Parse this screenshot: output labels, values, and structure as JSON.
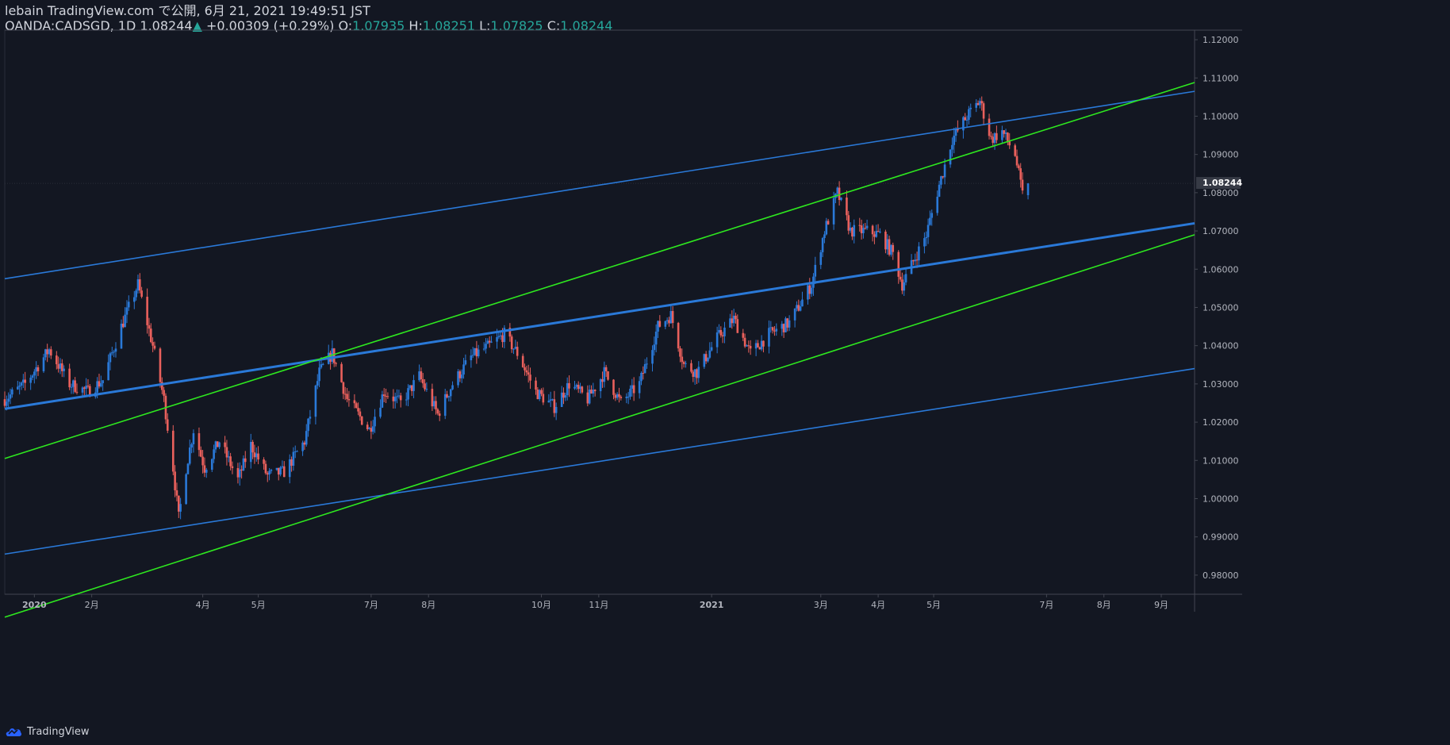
{
  "header": {
    "publish_line": "lebain TradingView.com で公開, 6月 21, 2021 19:49:51 JST",
    "symbol_line": "OANDA:CADSGD, 1D",
    "last": "1.08244",
    "change": "+0.00309 (+0.29%)",
    "open_label": "O:",
    "open": "1.07935",
    "high_label": "H:",
    "high": "1.08251",
    "low_label": "L:",
    "low": "1.07825",
    "close_label": "C:",
    "close": "1.08244"
  },
  "footer": {
    "brand": "TradingView"
  },
  "colors": {
    "background": "#131722",
    "up": "#2a79d8",
    "down": "#e9605c",
    "channel_blue": "#2a79d8",
    "channel_green": "#2ee81f",
    "axis_text": "#b2b5be",
    "price_label_bg": "#363a45"
  },
  "chart_data": {
    "type": "candlestick",
    "symbol": "OANDA:CADSGD",
    "interval": "1D",
    "ylim": [
      0.975,
      1.1225
    ],
    "y_ticks": [
      "0.98000",
      "0.99000",
      "1.00000",
      "1.01000",
      "1.02000",
      "1.03000",
      "1.04000",
      "1.05000",
      "1.06000",
      "1.07000",
      "1.08000",
      "1.09000",
      "1.10000",
      "1.11000",
      "1.12000"
    ],
    "x_tick_labels": [
      "2020",
      "2月",
      "4月",
      "5月",
      "7月",
      "8月",
      "10月",
      "11月",
      "2021",
      "3月",
      "4月",
      "5月",
      "7月",
      "8月",
      "9月"
    ],
    "current_price_label": "1.08244",
    "ohlc_last": {
      "open": 1.07935,
      "high": 1.08251,
      "low": 1.07825,
      "close": 1.08244
    },
    "path": [
      [
        "2019-12-16",
        1.026
      ],
      [
        "2019-12-27",
        1.03
      ],
      [
        "2020-01-09",
        1.039
      ],
      [
        "2020-01-20",
        1.03
      ],
      [
        "2020-01-30",
        1.028
      ],
      [
        "2020-02-07",
        1.031
      ],
      [
        "2020-02-17",
        1.045
      ],
      [
        "2020-02-26",
        1.056
      ],
      [
        "2020-03-05",
        1.04
      ],
      [
        "2020-03-11",
        1.026
      ],
      [
        "2020-03-16",
        1.008
      ],
      [
        "2020-03-19",
        0.995
      ],
      [
        "2020-03-23",
        1.008
      ],
      [
        "2020-03-27",
        1.018
      ],
      [
        "2020-04-02",
        1.008
      ],
      [
        "2020-04-10",
        1.015
      ],
      [
        "2020-04-20",
        1.005
      ],
      [
        "2020-04-27",
        1.014
      ],
      [
        "2020-05-06",
        1.006
      ],
      [
        "2020-05-15",
        1.007
      ],
      [
        "2020-05-26",
        1.015
      ],
      [
        "2020-06-03",
        1.033
      ],
      [
        "2020-06-10",
        1.038
      ],
      [
        "2020-06-18",
        1.026
      ],
      [
        "2020-06-30",
        1.018
      ],
      [
        "2020-07-08",
        1.028
      ],
      [
        "2020-07-17",
        1.025
      ],
      [
        "2020-07-27",
        1.032
      ],
      [
        "2020-08-06",
        1.022
      ],
      [
        "2020-08-14",
        1.03
      ],
      [
        "2020-08-24",
        1.037
      ],
      [
        "2020-09-03",
        1.04
      ],
      [
        "2020-09-11",
        1.043
      ],
      [
        "2020-09-18",
        1.038
      ],
      [
        "2020-09-28",
        1.028
      ],
      [
        "2020-10-08",
        1.024
      ],
      [
        "2020-10-16",
        1.03
      ],
      [
        "2020-10-26",
        1.026
      ],
      [
        "2020-11-04",
        1.033
      ],
      [
        "2020-11-13",
        1.025
      ],
      [
        "2020-11-23",
        1.03
      ],
      [
        "2020-12-03",
        1.045
      ],
      [
        "2020-12-10",
        1.048
      ],
      [
        "2020-12-17",
        1.035
      ],
      [
        "2020-12-24",
        1.033
      ],
      [
        "2021-01-04",
        1.042
      ],
      [
        "2021-01-13",
        1.047
      ],
      [
        "2021-01-22",
        1.038
      ],
      [
        "2021-02-01",
        1.043
      ],
      [
        "2021-02-12",
        1.046
      ],
      [
        "2021-02-24",
        1.056
      ],
      [
        "2021-03-03",
        1.07
      ],
      [
        "2021-03-10",
        1.08
      ],
      [
        "2021-03-17",
        1.07
      ],
      [
        "2021-03-26",
        1.07
      ],
      [
        "2021-04-02",
        1.069
      ],
      [
        "2021-04-09",
        1.064
      ],
      [
        "2021-04-14",
        1.056
      ],
      [
        "2021-04-20",
        1.062
      ],
      [
        "2021-04-27",
        1.069
      ],
      [
        "2021-05-04",
        1.082
      ],
      [
        "2021-05-11",
        1.094
      ],
      [
        "2021-05-19",
        1.1
      ],
      [
        "2021-05-26",
        1.104
      ],
      [
        "2021-06-01",
        1.094
      ],
      [
        "2021-06-07",
        1.096
      ],
      [
        "2021-06-14",
        1.09
      ],
      [
        "2021-06-18",
        1.0794
      ],
      [
        "2021-06-21",
        1.0824
      ]
    ],
    "trend_lines": [
      {
        "color": "channel_blue",
        "from": [
          "2019-12-16",
          1.0575
        ],
        "to": [
          "2021-09-19",
          1.1065
        ]
      },
      {
        "color": "channel_blue",
        "from": [
          "2019-12-16",
          1.0235
        ],
        "to": [
          "2021-09-19",
          1.072
        ]
      },
      {
        "color": "channel_blue",
        "from": [
          "2019-12-16",
          0.9855
        ],
        "to": [
          "2021-09-19",
          1.034
        ]
      },
      {
        "color": "channel_green",
        "from": [
          "2019-12-16",
          1.0105
        ],
        "to": [
          "2021-09-19",
          1.1088
        ]
      },
      {
        "color": "channel_green",
        "from": [
          "2019-12-16",
          0.969
        ],
        "to": [
          "2021-09-19",
          1.069
        ]
      }
    ],
    "x_ticks_at": [
      "2020-01-01",
      "2020-02-01",
      "2020-04-01",
      "2020-05-01",
      "2020-07-01",
      "2020-08-01",
      "2020-10-01",
      "2020-11-01",
      "2021-01-01",
      "2021-03-01",
      "2021-04-01",
      "2021-05-01",
      "2021-07-01",
      "2021-08-01",
      "2021-09-01"
    ]
  }
}
